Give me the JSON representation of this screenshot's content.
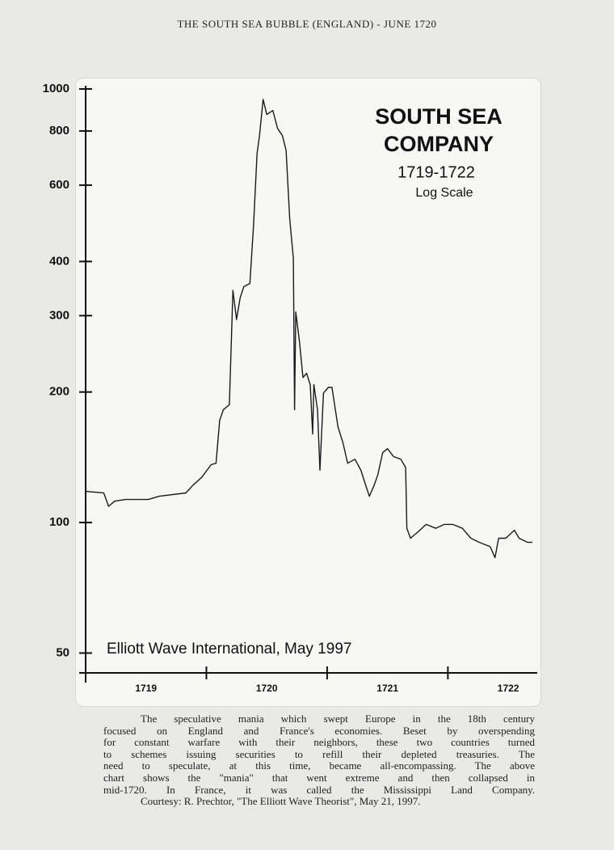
{
  "header": "THE SOUTH SEA BUBBLE (ENGLAND) - JUNE 1720",
  "chart_data": {
    "type": "line",
    "title": [
      "SOUTH SEA",
      "COMPANY"
    ],
    "subtitle": "1719-1722",
    "annotation": "Log Scale",
    "source": "Elliott Wave International, May 1997",
    "log_scale": true,
    "color": "#1a1a1a",
    "x": [
      1719.0,
      1719.15,
      1719.19,
      1719.24,
      1719.33,
      1719.52,
      1719.61,
      1719.83,
      1719.89,
      1719.96,
      1720.04,
      1720.08,
      1720.11,
      1720.14,
      1720.19,
      1720.22,
      1720.25,
      1720.28,
      1720.31,
      1720.36,
      1720.39,
      1720.42,
      1720.44,
      1720.47,
      1720.5,
      1720.55,
      1720.59,
      1720.63,
      1720.66,
      1720.69,
      1720.72,
      1720.73,
      1720.74,
      1720.77,
      1720.8,
      1720.83,
      1720.86,
      1720.88,
      1720.89,
      1720.92,
      1720.94,
      1720.97,
      1721.01,
      1721.04,
      1721.09,
      1721.13,
      1721.17,
      1721.23,
      1721.28,
      1721.31,
      1721.35,
      1721.39,
      1721.42,
      1721.46,
      1721.5,
      1721.55,
      1721.61,
      1721.65,
      1721.66,
      1721.69,
      1721.75,
      1721.82,
      1721.9,
      1721.97,
      1722.04,
      1722.12,
      1722.19,
      1722.26,
      1722.35,
      1722.39,
      1722.42,
      1722.48,
      1722.55,
      1722.59,
      1722.66,
      1722.7
    ],
    "values": [
      118,
      117,
      109,
      112,
      113,
      113,
      115,
      117,
      122,
      127,
      136,
      137,
      172,
      182,
      187,
      343,
      294,
      330,
      350,
      356,
      483,
      710,
      780,
      946,
      873,
      892,
      811,
      780,
      722,
      502,
      407,
      182,
      306,
      262,
      216,
      221,
      208,
      160,
      208,
      182,
      132,
      199,
      205,
      205,
      166,
      153,
      137,
      140,
      132,
      124,
      115,
      122,
      129,
      145,
      148,
      142,
      140,
      134,
      97,
      92,
      95,
      99,
      97,
      99,
      99,
      97,
      92,
      90,
      88,
      83,
      92,
      92,
      96,
      92,
      90,
      90
    ],
    "xlim": [
      1719,
      1722.74
    ],
    "xticks": [
      1719,
      1720,
      1721,
      1722
    ],
    "ylim": [
      45,
      1000
    ],
    "yticks": [
      50,
      100,
      200,
      300,
      400,
      600,
      800,
      1000
    ]
  },
  "caption": [
    "The speculative mania which swept Europe in the 18th century",
    "focused on England and France's economies. Beset by overspending",
    "for constant warfare with their neighbors, these two countries turned",
    "to schemes issuing securities to refill their depleted treasuries. The",
    "need to speculate, at this time, became all-encompassing. The above",
    "chart shows the \"mania\" that went extreme and then collapsed in",
    "mid-1720. In France, it was called the Mississippi Land Company.",
    "Courtesy: R. Prechtor, \"The Elliott Wave Theorist\", May 21, 1997."
  ]
}
